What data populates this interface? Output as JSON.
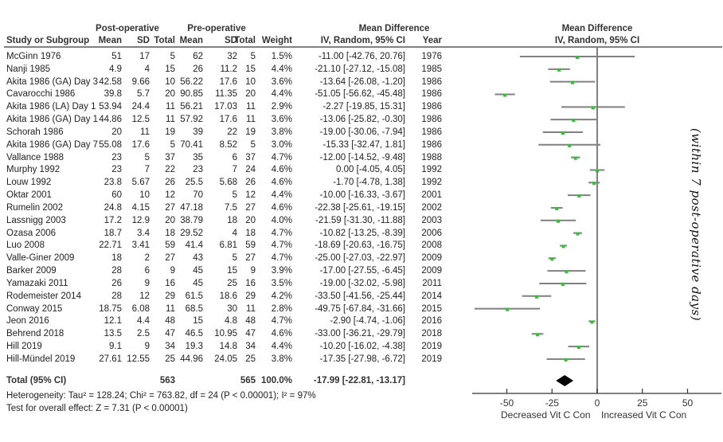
{
  "headers": {
    "group_post": "Post-operative",
    "group_pre": "Pre-operative",
    "group_md": "Mean Difference",
    "study": "Study or Subgroup",
    "mean": "Mean",
    "sd": "SD",
    "total": "Total",
    "weight": "Weight",
    "md_method": "IV, Random, 95% CI",
    "year": "Year",
    "plot_title": "Mean Difference",
    "plot_method": "IV, Random, 95% CI"
  },
  "chart_data": {
    "type": "forest",
    "title": "Mean Difference IV, Random, 95% CI",
    "xlim": [
      -69.6,
      68
    ],
    "xticks": [
      -50,
      -25,
      0,
      25,
      50
    ],
    "xtick_labels": [
      "-50",
      "-25",
      "0",
      "25",
      "50"
    ],
    "xlabel_left": "Decreased Vit C Con",
    "xlabel_right": "Increased Vit C Con",
    "side_note": "(within 7 post-operative days)",
    "colors": {
      "point": "#22cc22",
      "ci": "#808080",
      "diamond": "#000000"
    },
    "studies": [
      {
        "name": "McGinn 1976",
        "post_mean": "51",
        "post_sd": "17",
        "post_n": "5",
        "pre_mean": "62",
        "pre_sd": "32",
        "pre_n": "5",
        "weight": "1.5%",
        "md_text": "-11.00 [-42.76, 20.76]",
        "year": "1976",
        "md": -11.0,
        "lo": -42.76,
        "hi": 20.76
      },
      {
        "name": "Nanji 1985",
        "post_mean": "4.9",
        "post_sd": "4",
        "post_n": "15",
        "pre_mean": "26",
        "pre_sd": "11.2",
        "pre_n": "15",
        "weight": "4.4%",
        "md_text": "-21.10 [-27.12, -15.08]",
        "year": "1985",
        "md": -21.1,
        "lo": -27.12,
        "hi": -15.08
      },
      {
        "name": "Akita 1986 (GA) Day 3",
        "post_mean": "42.58",
        "post_sd": "9.66",
        "post_n": "10",
        "pre_mean": "56.22",
        "pre_sd": "17.6",
        "pre_n": "10",
        "weight": "3.6%",
        "md_text": "-13.64 [-26.08, -1.20]",
        "year": "1986",
        "md": -13.64,
        "lo": -26.08,
        "hi": -1.2
      },
      {
        "name": "Cavarocchi 1986",
        "post_mean": "39.8",
        "post_sd": "5.7",
        "post_n": "20",
        "pre_mean": "90.85",
        "pre_sd": "11.35",
        "pre_n": "20",
        "weight": "4.4%",
        "md_text": "-51.05 [-56.62, -45.48]",
        "year": "1986",
        "md": -51.05,
        "lo": -56.62,
        "hi": -45.48
      },
      {
        "name": "Akita 1986 (LA) Day 1",
        "post_mean": "53.94",
        "post_sd": "24.4",
        "post_n": "11",
        "pre_mean": "56.21",
        "pre_sd": "17.03",
        "pre_n": "11",
        "weight": "2.9%",
        "md_text": "-2.27 [-19.85, 15.31]",
        "year": "1986",
        "md": -2.27,
        "lo": -19.85,
        "hi": 15.31
      },
      {
        "name": "Akita 1986 (GA) Day 1",
        "post_mean": "44.86",
        "post_sd": "12.5",
        "post_n": "11",
        "pre_mean": "57.92",
        "pre_sd": "17.6",
        "pre_n": "11",
        "weight": "3.6%",
        "md_text": "-13.06 [-25.82, -0.30]",
        "year": "1986",
        "md": -13.06,
        "lo": -25.82,
        "hi": -0.3
      },
      {
        "name": "Schorah 1986",
        "post_mean": "20",
        "post_sd": "11",
        "post_n": "19",
        "pre_mean": "39",
        "pre_sd": "22",
        "pre_n": "19",
        "weight": "3.8%",
        "md_text": "-19.00 [-30.06, -7.94]",
        "year": "1986",
        "md": -19.0,
        "lo": -30.06,
        "hi": -7.94
      },
      {
        "name": "Akita 1986 (GA) Day 7",
        "post_mean": "55.08",
        "post_sd": "17.6",
        "post_n": "5",
        "pre_mean": "70.41",
        "pre_sd": "8.52",
        "pre_n": "5",
        "weight": "3.0%",
        "md_text": "-15.33 [-32.47, 1.81]",
        "year": "1986",
        "md": -15.33,
        "lo": -32.47,
        "hi": 1.81
      },
      {
        "name": "Vallance 1988",
        "post_mean": "23",
        "post_sd": "5",
        "post_n": "37",
        "pre_mean": "35",
        "pre_sd": "6",
        "pre_n": "37",
        "weight": "4.7%",
        "md_text": "-12.00 [-14.52, -9.48]",
        "year": "1988",
        "md": -12.0,
        "lo": -14.52,
        "hi": -9.48
      },
      {
        "name": "Murphy 1992",
        "post_mean": "23",
        "post_sd": "7",
        "post_n": "22",
        "pre_mean": "23",
        "pre_sd": "7",
        "pre_n": "24",
        "weight": "4.6%",
        "md_text": "0.00 [-4.05, 4.05]",
        "year": "1992",
        "md": 0.0,
        "lo": -4.05,
        "hi": 4.05
      },
      {
        "name": "Louw 1992",
        "post_mean": "23.8",
        "post_sd": "5.67",
        "post_n": "26",
        "pre_mean": "25.5",
        "pre_sd": "5.68",
        "pre_n": "26",
        "weight": "4.6%",
        "md_text": "-1.70 [-4.78, 1.38]",
        "year": "1992",
        "md": -1.7,
        "lo": -4.78,
        "hi": 1.38
      },
      {
        "name": "Oktar 2001",
        "post_mean": "60",
        "post_sd": "10",
        "post_n": "12",
        "pre_mean": "70",
        "pre_sd": "5",
        "pre_n": "12",
        "weight": "4.4%",
        "md_text": "-10.00 [-16.33, -3.67]",
        "year": "2001",
        "md": -10.0,
        "lo": -16.33,
        "hi": -3.67
      },
      {
        "name": "Rumelin 2002",
        "post_mean": "24.8",
        "post_sd": "4.15",
        "post_n": "27",
        "pre_mean": "47.18",
        "pre_sd": "7.5",
        "pre_n": "27",
        "weight": "4.6%",
        "md_text": "-22.38 [-25.61, -19.15]",
        "year": "2002",
        "md": -22.38,
        "lo": -25.61,
        "hi": -19.15
      },
      {
        "name": "Lassnigg 2003",
        "post_mean": "17.2",
        "post_sd": "12.9",
        "post_n": "20",
        "pre_mean": "38.79",
        "pre_sd": "18",
        "pre_n": "20",
        "weight": "4.0%",
        "md_text": "-21.59 [-31.30, -11.88]",
        "year": "2003",
        "md": -21.59,
        "lo": -31.3,
        "hi": -11.88
      },
      {
        "name": "Ozasa 2006",
        "post_mean": "18.7",
        "post_sd": "3.4",
        "post_n": "18",
        "pre_mean": "29.52",
        "pre_sd": "4",
        "pre_n": "18",
        "weight": "4.7%",
        "md_text": "-10.82 [-13.25, -8.39]",
        "year": "2006",
        "md": -10.82,
        "lo": -13.25,
        "hi": -8.39
      },
      {
        "name": "Luo 2008",
        "post_mean": "22.71",
        "post_sd": "3.41",
        "post_n": "59",
        "pre_mean": "41.4",
        "pre_sd": "6.81",
        "pre_n": "59",
        "weight": "4.7%",
        "md_text": "-18.69 [-20.63, -16.75]",
        "year": "2008",
        "md": -18.69,
        "lo": -20.63,
        "hi": -16.75
      },
      {
        "name": "Valle-Giner 2009",
        "post_mean": "18",
        "post_sd": "2",
        "post_n": "27",
        "pre_mean": "43",
        "pre_sd": "5",
        "pre_n": "27",
        "weight": "4.7%",
        "md_text": "-25.00 [-27.03, -22.97]",
        "year": "2009",
        "md": -25.0,
        "lo": -27.03,
        "hi": -22.97
      },
      {
        "name": "Barker 2009",
        "post_mean": "28",
        "post_sd": "6",
        "post_n": "9",
        "pre_mean": "45",
        "pre_sd": "15",
        "pre_n": "9",
        "weight": "3.9%",
        "md_text": "-17.00 [-27.55, -6.45]",
        "year": "2009",
        "md": -17.0,
        "lo": -27.55,
        "hi": -6.45
      },
      {
        "name": "Yamazaki 2011",
        "post_mean": "26",
        "post_sd": "9",
        "post_n": "16",
        "pre_mean": "45",
        "pre_sd": "25",
        "pre_n": "16",
        "weight": "3.5%",
        "md_text": "-19.00 [-32.02, -5.98]",
        "year": "2011",
        "md": -19.0,
        "lo": -32.02,
        "hi": -5.98
      },
      {
        "name": "Rodemeister 2014",
        "post_mean": "28",
        "post_sd": "12",
        "post_n": "29",
        "pre_mean": "61.5",
        "pre_sd": "18.6",
        "pre_n": "29",
        "weight": "4.2%",
        "md_text": "-33.50 [-41.56, -25.44]",
        "year": "2014",
        "md": -33.5,
        "lo": -41.56,
        "hi": -25.44
      },
      {
        "name": "Conway 2015",
        "post_mean": "18.75",
        "post_sd": "6.08",
        "post_n": "11",
        "pre_mean": "68.5",
        "pre_sd": "30",
        "pre_n": "11",
        "weight": "2.8%",
        "md_text": "-49.75 [-67.84, -31.66]",
        "year": "2015",
        "md": -49.75,
        "lo": -67.84,
        "hi": -31.66
      },
      {
        "name": "Jeon 2016",
        "post_mean": "12.1",
        "post_sd": "4.4",
        "post_n": "48",
        "pre_mean": "15",
        "pre_sd": "4.8",
        "pre_n": "48",
        "weight": "4.7%",
        "md_text": "-2.90 [-4.74, -1.06]",
        "year": "2016",
        "md": -2.9,
        "lo": -4.74,
        "hi": -1.06
      },
      {
        "name": "Behrend 2018",
        "post_mean": "13.5",
        "post_sd": "2.5",
        "post_n": "47",
        "pre_mean": "46.5",
        "pre_sd": "10.95",
        "pre_n": "47",
        "weight": "4.6%",
        "md_text": "-33.00 [-36.21, -29.79]",
        "year": "2018",
        "md": -33.0,
        "lo": -36.21,
        "hi": -29.79
      },
      {
        "name": "Hill 2019",
        "post_mean": "9.1",
        "post_sd": "9",
        "post_n": "34",
        "pre_mean": "19.3",
        "pre_sd": "14.8",
        "pre_n": "34",
        "weight": "4.4%",
        "md_text": "-10.20 [-16.02, -4.38]",
        "year": "2019",
        "md": -10.2,
        "lo": -16.02,
        "hi": -4.38
      },
      {
        "name": "Hill-Mündel 2019",
        "post_mean": "27.61",
        "post_sd": "12.55",
        "post_n": "25",
        "pre_mean": "44.96",
        "pre_sd": "24.05",
        "pre_n": "25",
        "weight": "3.8%",
        "md_text": "-17.35 [-27.98, -6.72]",
        "year": "2019",
        "md": -17.35,
        "lo": -27.98,
        "hi": -6.72
      }
    ],
    "total": {
      "label": "Total (95% CI)",
      "post_n": "563",
      "pre_n": "565",
      "weight": "100.0%",
      "md_text": "-17.99 [-22.81, -13.17]",
      "md": -17.99,
      "lo": -22.81,
      "hi": -13.17
    },
    "heterogeneity": "Heterogeneity: Tau² = 128.24; Chi² = 763.82, df = 24 (P < 0.00001); I² = 97%",
    "overall_effect": "Test for overall effect: Z = 7.31 (P < 0.00001)"
  }
}
